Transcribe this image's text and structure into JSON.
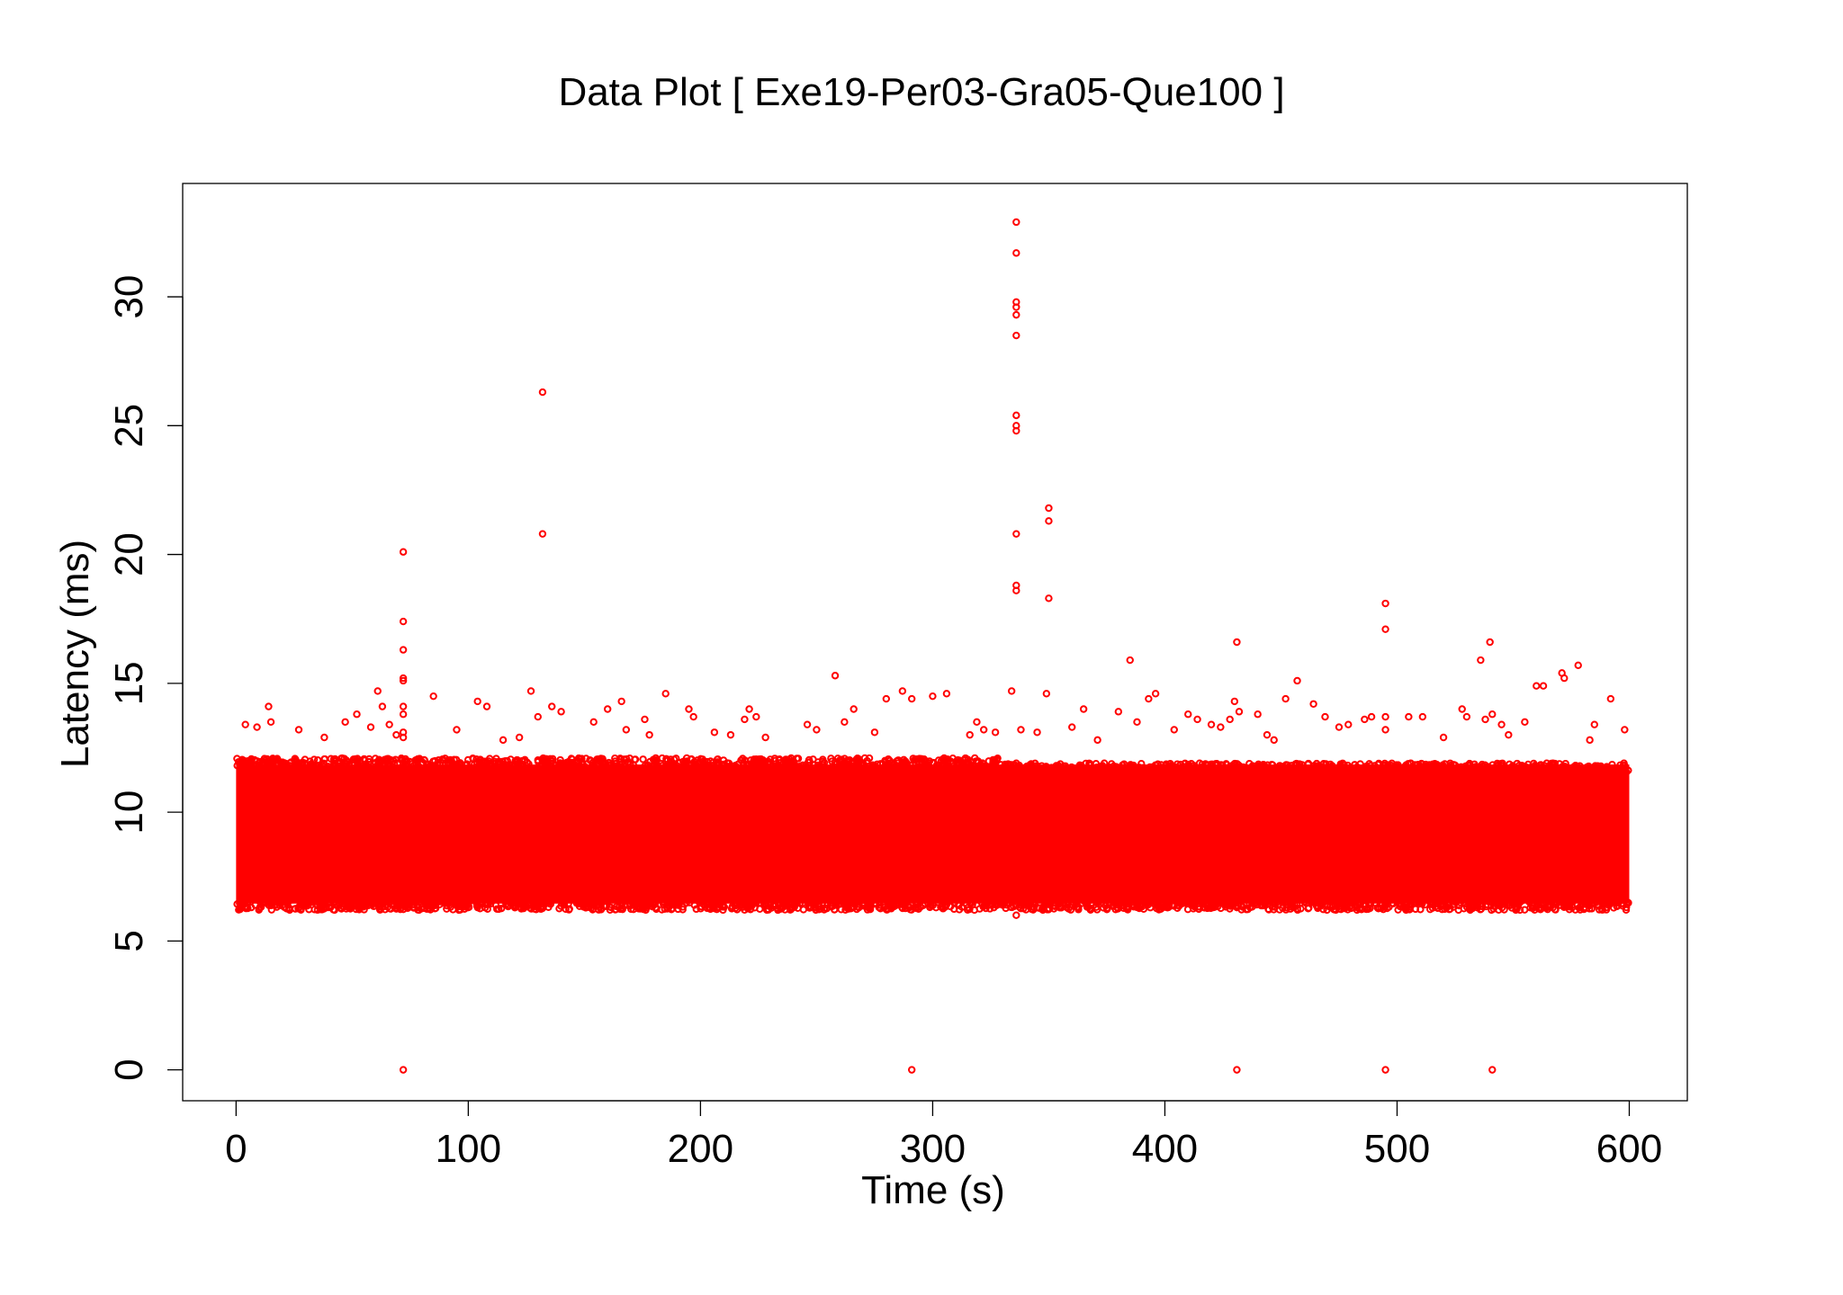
{
  "colors": {
    "background": "#ffffff",
    "points": "#ff0000",
    "axes": "#000000"
  },
  "chart_data": {
    "type": "scatter",
    "title": "Data Plot [ Exe19-Per03-Gra05-Que100 ]",
    "xlabel": "Time (s)",
    "ylabel": "Latency (ms)",
    "xlim": [
      -23,
      625
    ],
    "ylim": [
      -1.2,
      34.4
    ],
    "x_ticks": [
      0,
      100,
      200,
      300,
      400,
      500,
      600
    ],
    "y_ticks": [
      0,
      5,
      10,
      15,
      20,
      25,
      30
    ],
    "x_tick_labels": [
      "0",
      "100",
      "200",
      "300",
      "400",
      "500",
      "600"
    ],
    "y_tick_labels": [
      "0",
      "5",
      "10",
      "15",
      "20",
      "25",
      "30"
    ],
    "grid": false,
    "legend": null,
    "marker": "open-circle",
    "series": [
      {
        "color": "#ff0000",
        "dense_band": {
          "x_range": [
            0,
            600
          ],
          "y_range": [
            6.2,
            12.1
          ],
          "upper_edge_after_x330": 11.9
        },
        "points": [
          [
            72,
            0
          ],
          [
            291,
            0
          ],
          [
            431,
            0
          ],
          [
            495,
            0
          ],
          [
            541,
            0
          ],
          [
            336,
            6.0
          ],
          [
            72,
            20.1
          ],
          [
            72,
            17.4
          ],
          [
            72,
            16.3
          ],
          [
            72,
            15.2
          ],
          [
            72,
            15.1
          ],
          [
            72,
            14.1
          ],
          [
            72,
            13.8
          ],
          [
            72,
            13.1
          ],
          [
            72,
            12.9
          ],
          [
            132,
            26.3
          ],
          [
            132,
            20.8
          ],
          [
            127,
            14.7
          ],
          [
            130,
            13.7
          ],
          [
            136,
            14.1
          ],
          [
            140,
            13.9
          ],
          [
            336,
            32.9
          ],
          [
            336,
            31.7
          ],
          [
            336,
            29.8
          ],
          [
            336,
            29.6
          ],
          [
            336,
            29.3
          ],
          [
            336,
            28.5
          ],
          [
            336,
            25.4
          ],
          [
            336,
            25.0
          ],
          [
            336,
            24.8
          ],
          [
            336,
            20.8
          ],
          [
            336,
            18.8
          ],
          [
            336,
            18.6
          ],
          [
            334,
            14.7
          ],
          [
            338,
            13.2
          ],
          [
            350,
            21.8
          ],
          [
            350,
            21.3
          ],
          [
            350,
            18.3
          ],
          [
            349,
            14.6
          ],
          [
            495,
            18.1
          ],
          [
            495,
            17.1
          ],
          [
            495,
            13.7
          ],
          [
            495,
            13.2
          ],
          [
            431,
            16.6
          ],
          [
            430,
            14.3
          ],
          [
            428,
            13.6
          ],
          [
            432,
            13.9
          ],
          [
            540,
            16.6
          ],
          [
            536,
            15.9
          ],
          [
            541,
            13.8
          ],
          [
            538,
            13.6
          ],
          [
            258,
            15.3
          ],
          [
            280,
            14.4
          ],
          [
            287,
            14.7
          ],
          [
            291,
            14.4
          ],
          [
            300,
            14.5
          ],
          [
            306,
            14.6
          ],
          [
            385,
            15.9
          ],
          [
            393,
            14.4
          ],
          [
            396,
            14.6
          ],
          [
            380,
            13.9
          ],
          [
            388,
            13.5
          ],
          [
            457,
            15.1
          ],
          [
            452,
            14.4
          ],
          [
            464,
            14.2
          ],
          [
            469,
            13.7
          ],
          [
            571,
            15.4
          ],
          [
            572,
            15.2
          ],
          [
            578,
            15.7
          ],
          [
            560,
            14.9
          ],
          [
            563,
            14.9
          ],
          [
            592,
            14.4
          ],
          [
            555,
            13.5
          ],
          [
            585,
            13.4
          ],
          [
            598,
            13.2
          ],
          [
            583,
            12.8
          ],
          [
            61,
            14.7
          ],
          [
            63,
            14.1
          ],
          [
            52,
            13.8
          ],
          [
            47,
            13.5
          ],
          [
            58,
            13.3
          ],
          [
            66,
            13.4
          ],
          [
            69,
            13.0
          ],
          [
            14,
            14.1
          ],
          [
            15,
            13.5
          ],
          [
            4,
            13.4
          ],
          [
            9,
            13.3
          ],
          [
            27,
            13.2
          ],
          [
            38,
            12.9
          ],
          [
            85,
            14.5
          ],
          [
            95,
            13.2
          ],
          [
            104,
            14.3
          ],
          [
            108,
            14.1
          ],
          [
            115,
            12.8
          ],
          [
            122,
            12.9
          ],
          [
            154,
            13.5
          ],
          [
            160,
            14.0
          ],
          [
            166,
            14.3
          ],
          [
            168,
            13.2
          ],
          [
            176,
            13.6
          ],
          [
            185,
            14.6
          ],
          [
            178,
            13.0
          ],
          [
            195,
            14.0
          ],
          [
            197,
            13.7
          ],
          [
            206,
            13.1
          ],
          [
            213,
            13.0
          ],
          [
            219,
            13.6
          ],
          [
            221,
            14.0
          ],
          [
            224,
            13.7
          ],
          [
            228,
            12.9
          ],
          [
            246,
            13.4
          ],
          [
            250,
            13.2
          ],
          [
            262,
            13.5
          ],
          [
            266,
            14.0
          ],
          [
            275,
            13.1
          ],
          [
            316,
            13.0
          ],
          [
            319,
            13.5
          ],
          [
            322,
            13.2
          ],
          [
            327,
            13.1
          ],
          [
            345,
            13.1
          ],
          [
            360,
            13.3
          ],
          [
            365,
            14.0
          ],
          [
            371,
            12.8
          ],
          [
            404,
            13.2
          ],
          [
            410,
            13.8
          ],
          [
            414,
            13.6
          ],
          [
            420,
            13.4
          ],
          [
            424,
            13.3
          ],
          [
            440,
            13.8
          ],
          [
            444,
            13.0
          ],
          [
            447,
            12.8
          ],
          [
            475,
            13.3
          ],
          [
            479,
            13.4
          ],
          [
            486,
            13.6
          ],
          [
            489,
            13.7
          ],
          [
            505,
            13.7
          ],
          [
            511,
            13.7
          ],
          [
            520,
            12.9
          ],
          [
            528,
            14.0
          ],
          [
            530,
            13.7
          ],
          [
            545,
            13.4
          ],
          [
            548,
            13.0
          ]
        ]
      }
    ]
  }
}
